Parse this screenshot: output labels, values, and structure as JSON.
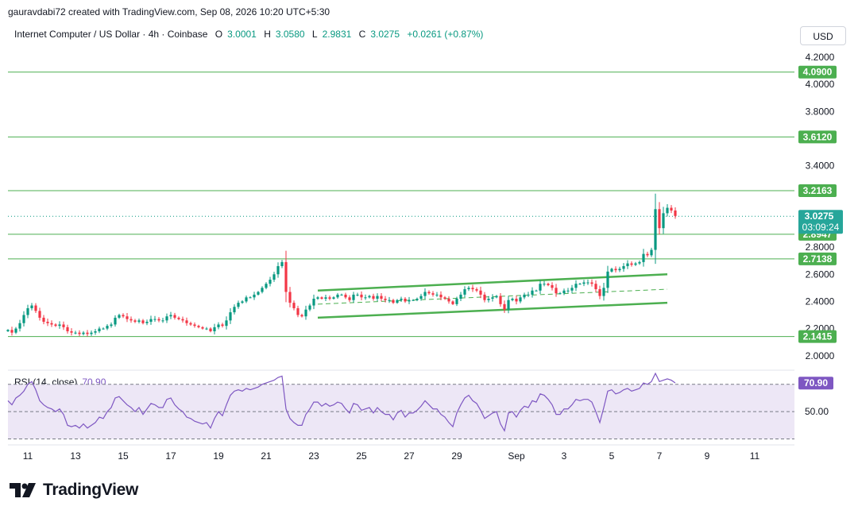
{
  "header": {
    "attribution": "gauravdabi72 created with TradingView.com, Sep 08, 2026 10:20 UTC+5:30"
  },
  "symbol": {
    "title": "Internet Computer / US Dollar · 4h · Coinbase",
    "o_label": "O",
    "o_value": "3.0001",
    "h_label": "H",
    "h_value": "3.0580",
    "l_label": "L",
    "l_value": "2.9831",
    "c_label": "C",
    "c_value": "3.0275",
    "change": "+0.0261 (+0.87%)"
  },
  "currency": "USD",
  "colors": {
    "up": "#089981",
    "down": "#f23645",
    "level": "#4caf50",
    "rsi": "#7e57c2",
    "rsi_band": "#ede7f6",
    "price_tag": "#26a69a"
  },
  "logo_text": "TradingView",
  "chart_data": {
    "type": "candlestick",
    "interval": "4h",
    "y_range": [
      1.94,
      4.27
    ],
    "price_ticks": [
      "4.2000",
      "4.0000",
      "3.8000",
      "3.4000",
      "2.8000",
      "2.6000",
      "2.4000",
      "2.2000",
      "2.0000"
    ],
    "price_tick_values": [
      4.2,
      4.0,
      3.8,
      3.4,
      2.8,
      2.6,
      2.4,
      2.2,
      2.0
    ],
    "date_ticks": [
      "11",
      "13",
      "15",
      "17",
      "19",
      "21",
      "23",
      "25",
      "27",
      "29",
      "Sep",
      "3",
      "5",
      "7",
      "9",
      "11"
    ],
    "date_tick_index": [
      5,
      17,
      29,
      41,
      53,
      65,
      77,
      89,
      101,
      113,
      128,
      140,
      152,
      164,
      176,
      188
    ],
    "horizontal_levels": [
      {
        "label": "4.0900",
        "value": 4.09
      },
      {
        "label": "3.6120",
        "value": 3.612
      },
      {
        "label": "3.2163",
        "value": 3.2163
      },
      {
        "label": "2.8947",
        "value": 2.8947
      },
      {
        "label": "2.7138",
        "value": 2.7138
      },
      {
        "label": "2.1415",
        "value": 2.1415
      }
    ],
    "last_price": {
      "label": "3.0275",
      "value": 3.0275,
      "countdown": "03:09:24"
    },
    "channel": {
      "upper": [
        [
          78,
          2.48
        ],
        [
          166,
          2.6
        ]
      ],
      "lower": [
        [
          78,
          2.28
        ],
        [
          166,
          2.39
        ]
      ],
      "mid": [
        [
          78,
          2.38
        ],
        [
          166,
          2.49
        ]
      ]
    },
    "closes": [
      2.19,
      2.17,
      2.2,
      2.24,
      2.3,
      2.35,
      2.37,
      2.33,
      2.28,
      2.25,
      2.24,
      2.23,
      2.22,
      2.23,
      2.21,
      2.18,
      2.17,
      2.17,
      2.16,
      2.17,
      2.16,
      2.17,
      2.18,
      2.2,
      2.2,
      2.22,
      2.23,
      2.28,
      2.3,
      2.29,
      2.27,
      2.26,
      2.25,
      2.26,
      2.24,
      2.25,
      2.27,
      2.27,
      2.26,
      2.26,
      2.29,
      2.3,
      2.28,
      2.27,
      2.26,
      2.24,
      2.23,
      2.22,
      2.21,
      2.2,
      2.2,
      2.18,
      2.21,
      2.23,
      2.22,
      2.26,
      2.32,
      2.36,
      2.39,
      2.4,
      2.43,
      2.43,
      2.45,
      2.47,
      2.5,
      2.53,
      2.56,
      2.6,
      2.66,
      2.69,
      2.47,
      2.39,
      2.35,
      2.3,
      2.29,
      2.34,
      2.37,
      2.42,
      2.43,
      2.42,
      2.43,
      2.42,
      2.43,
      2.45,
      2.45,
      2.43,
      2.41,
      2.45,
      2.45,
      2.43,
      2.43,
      2.44,
      2.42,
      2.44,
      2.42,
      2.41,
      2.41,
      2.39,
      2.41,
      2.42,
      2.4,
      2.41,
      2.41,
      2.42,
      2.44,
      2.47,
      2.46,
      2.45,
      2.45,
      2.43,
      2.42,
      2.4,
      2.38,
      2.42,
      2.45,
      2.49,
      2.5,
      2.49,
      2.48,
      2.45,
      2.41,
      2.42,
      2.43,
      2.44,
      2.38,
      2.34,
      2.41,
      2.42,
      2.4,
      2.43,
      2.45,
      2.45,
      2.48,
      2.48,
      2.53,
      2.53,
      2.52,
      2.5,
      2.46,
      2.46,
      2.48,
      2.48,
      2.5,
      2.53,
      2.53,
      2.54,
      2.54,
      2.53,
      2.49,
      2.44,
      2.5,
      2.62,
      2.64,
      2.63,
      2.64,
      2.66,
      2.68,
      2.67,
      2.68,
      2.69,
      2.75,
      2.74,
      2.78,
      3.08,
      2.94,
      3.05,
      3.09,
      3.07,
      3.03
    ],
    "rsi": {
      "label": "RSI (14, close)",
      "value_label": "70.90",
      "levels": [
        70,
        50,
        30
      ],
      "level_labels": [
        "70.00",
        "50.00"
      ],
      "y_range": [
        28,
        78
      ],
      "values": [
        58,
        55,
        60,
        62,
        65,
        70,
        72,
        66,
        58,
        55,
        53,
        52,
        50,
        52,
        48,
        40,
        39,
        40,
        38,
        41,
        38,
        40,
        42,
        46,
        45,
        50,
        53,
        60,
        61,
        58,
        55,
        53,
        50,
        53,
        48,
        52,
        56,
        55,
        53,
        53,
        59,
        60,
        55,
        52,
        50,
        46,
        45,
        43,
        42,
        41,
        42,
        38,
        45,
        50,
        47,
        55,
        62,
        65,
        66,
        65,
        67,
        66,
        67,
        68,
        70,
        71,
        72,
        73,
        75,
        76,
        52,
        45,
        42,
        40,
        40,
        48,
        52,
        57,
        57,
        54,
        56,
        54,
        55,
        57,
        56,
        52,
        49,
        56,
        55,
        51,
        52,
        53,
        49,
        53,
        50,
        48,
        48,
        44,
        49,
        51,
        46,
        49,
        49,
        51,
        54,
        58,
        55,
        52,
        52,
        48,
        46,
        42,
        39,
        49,
        55,
        60,
        62,
        58,
        56,
        51,
        45,
        47,
        49,
        50,
        41,
        36,
        49,
        50,
        46,
        51,
        54,
        53,
        58,
        57,
        63,
        62,
        59,
        55,
        48,
        48,
        52,
        52,
        55,
        59,
        58,
        59,
        59,
        57,
        50,
        42,
        53,
        65,
        66,
        63,
        64,
        66,
        67,
        65,
        66,
        67,
        71,
        70,
        72,
        78,
        72,
        73,
        74,
        73,
        71
      ]
    }
  }
}
